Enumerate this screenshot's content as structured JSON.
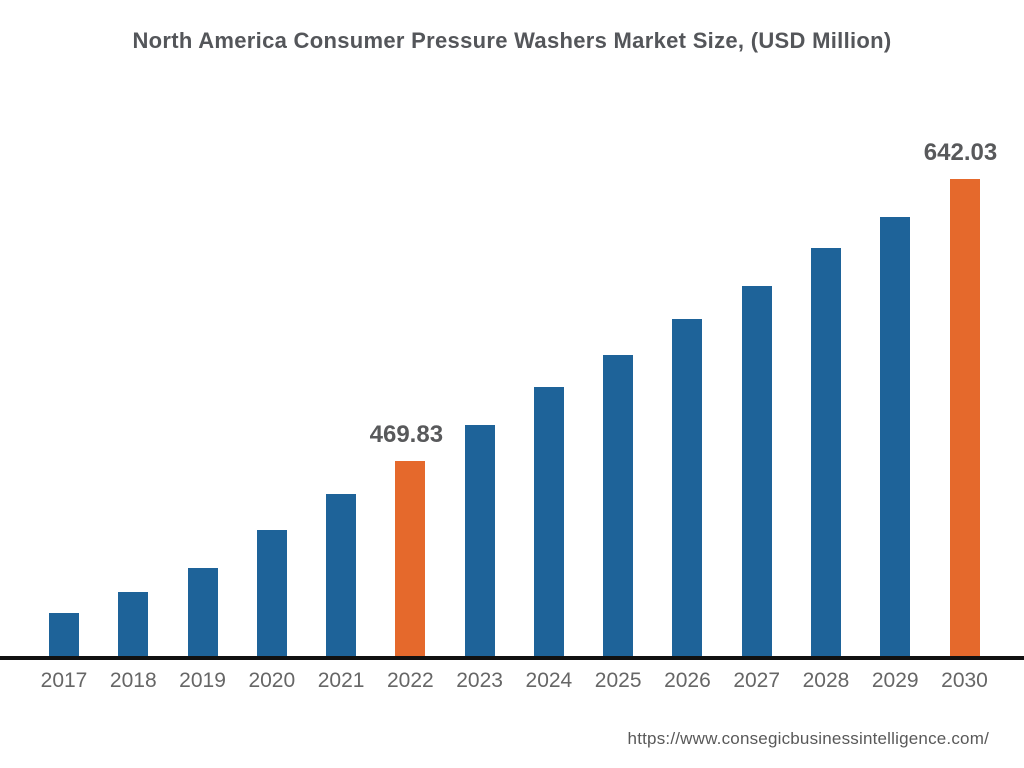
{
  "title": "North America Consumer Pressure Washers Market Size, (USD Million)",
  "footer": {
    "url_text": "https://www.consegicbusinessintelligence.com/"
  },
  "colors": {
    "bar_blue": "#1E6399",
    "bar_orange": "#E5692C",
    "title_text": "#54565A",
    "label_text": "#58595B",
    "tick_text": "#666666",
    "footer_text": "#595959",
    "axis_line": "#111111"
  },
  "chart_data": {
    "type": "bar",
    "title": "North America Consumer Pressure Washers Market Size, (USD Million)",
    "xlabel": "",
    "ylabel": "USD Million",
    "categories": [
      "2017",
      "2018",
      "2019",
      "2020",
      "2021",
      "2022",
      "2023",
      "2024",
      "2025",
      "2026",
      "2027",
      "2028",
      "2029",
      "2030"
    ],
    "values": [
      377,
      390,
      405,
      428,
      450,
      469.83,
      492,
      515,
      535,
      557,
      577,
      600,
      619,
      642.03
    ],
    "data_labels": {
      "2022": "469.83",
      "2030": "642.03"
    },
    "highlight_categories": [
      "2022",
      "2030"
    ],
    "bar_color": "#1E6399",
    "highlight_color": "#E5692C",
    "ylim": [
      351,
      644
    ],
    "grid": false,
    "legend": false
  }
}
